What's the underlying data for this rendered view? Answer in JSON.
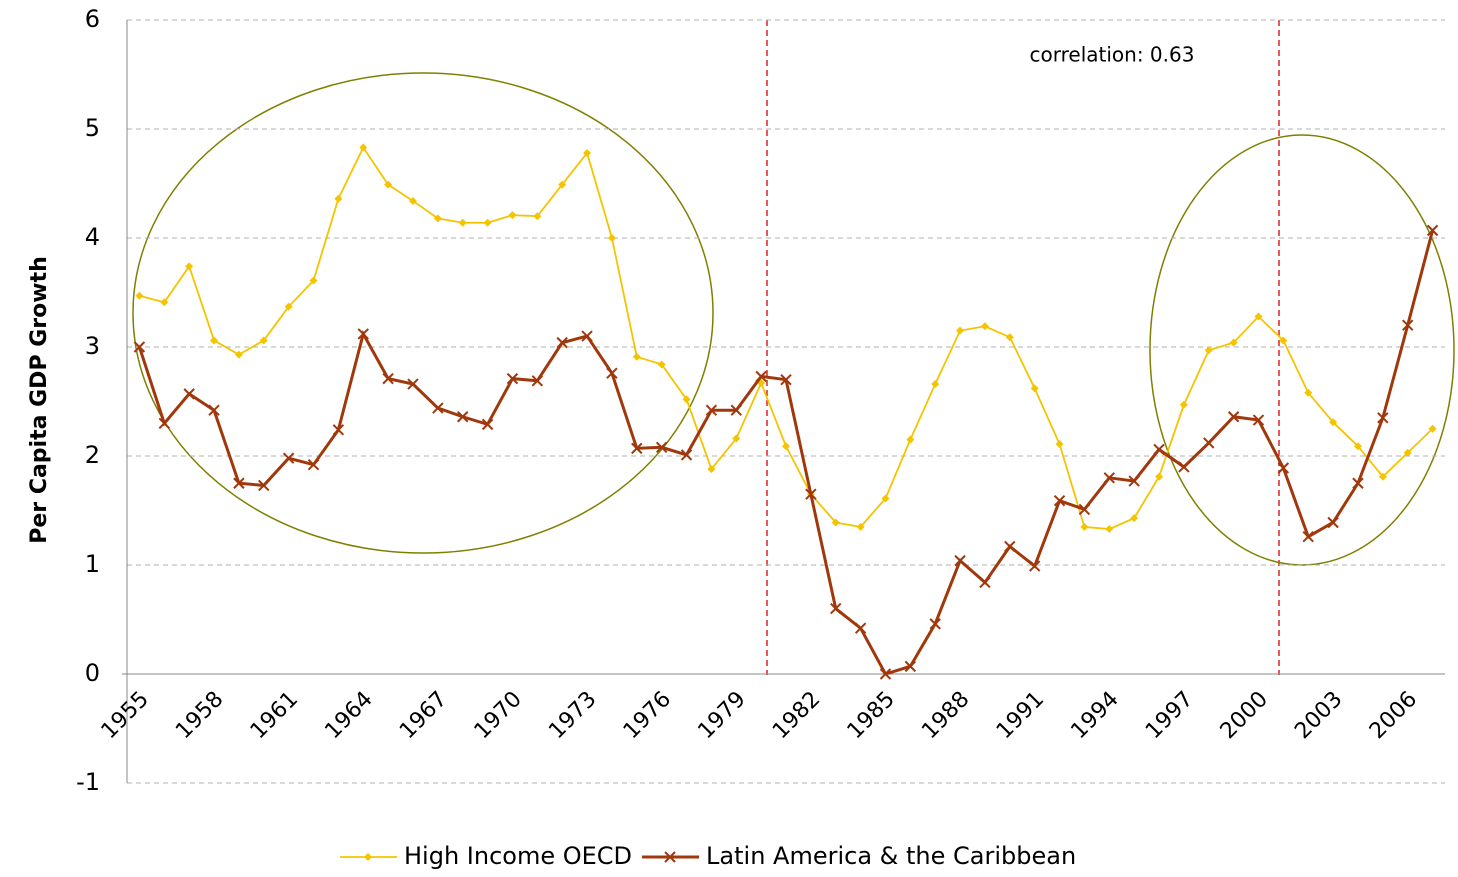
{
  "chart_data": {
    "type": "line",
    "y_label": "Per Capita GDP Growth",
    "annotation": "correlation: 0.63",
    "categories": [
      "1955",
      null,
      null,
      "1958",
      null,
      null,
      "1961",
      null,
      null,
      "1964",
      null,
      null,
      "1967",
      null,
      null,
      "1970",
      null,
      null,
      "1973",
      null,
      null,
      "1976",
      null,
      null,
      "1979",
      null,
      null,
      "1982",
      null,
      null,
      "1985",
      null,
      null,
      "1988",
      null,
      null,
      "1991",
      null,
      null,
      "1994",
      null,
      null,
      "1997",
      null,
      null,
      "2000",
      null,
      null,
      "2003",
      null,
      null,
      "2006",
      null
    ],
    "series": [
      {
        "name": "High Income OECD",
        "color": "#f5c400",
        "marker": "diamond",
        "values": [
          3.47,
          3.41,
          3.74,
          3.06,
          2.93,
          3.06,
          3.37,
          3.61,
          4.36,
          4.83,
          4.49,
          4.34,
          4.18,
          4.14,
          4.14,
          4.21,
          4.2,
          4.49,
          4.78,
          4.0,
          2.91,
          2.84,
          2.52,
          1.88,
          2.16,
          2.67,
          2.09,
          1.65,
          1.39,
          1.35,
          1.61,
          2.15,
          2.66,
          3.15,
          3.19,
          3.09,
          2.62,
          2.11,
          1.35,
          1.33,
          1.43,
          1.81,
          2.47,
          2.97,
          3.04,
          3.28,
          3.06,
          2.58,
          2.31,
          2.09,
          1.81,
          2.03,
          2.25
        ]
      },
      {
        "name": "Latin America & the Caribbean",
        "color": "#a0380c",
        "marker": "x",
        "values": [
          3.0,
          2.3,
          2.57,
          2.42,
          1.75,
          1.73,
          1.98,
          1.92,
          2.24,
          3.12,
          2.71,
          2.66,
          2.44,
          2.36,
          2.29,
          2.71,
          2.69,
          3.04,
          3.1,
          2.76,
          2.07,
          2.08,
          2.01,
          2.42,
          2.42,
          2.73,
          2.7,
          1.65,
          0.6,
          0.42,
          0.0,
          0.07,
          0.46,
          1.04,
          0.84,
          1.17,
          0.99,
          1.59,
          1.51,
          1.8,
          1.77,
          2.06,
          1.9,
          2.12,
          2.36,
          2.33,
          1.89,
          1.26,
          1.39,
          1.75,
          2.35,
          3.2,
          4.07
        ]
      }
    ],
    "ylim": [
      -1,
      6
    ],
    "yticks": [
      -1,
      0,
      1,
      2,
      3,
      4,
      5,
      6
    ],
    "grid": true,
    "legend": "bottom"
  }
}
